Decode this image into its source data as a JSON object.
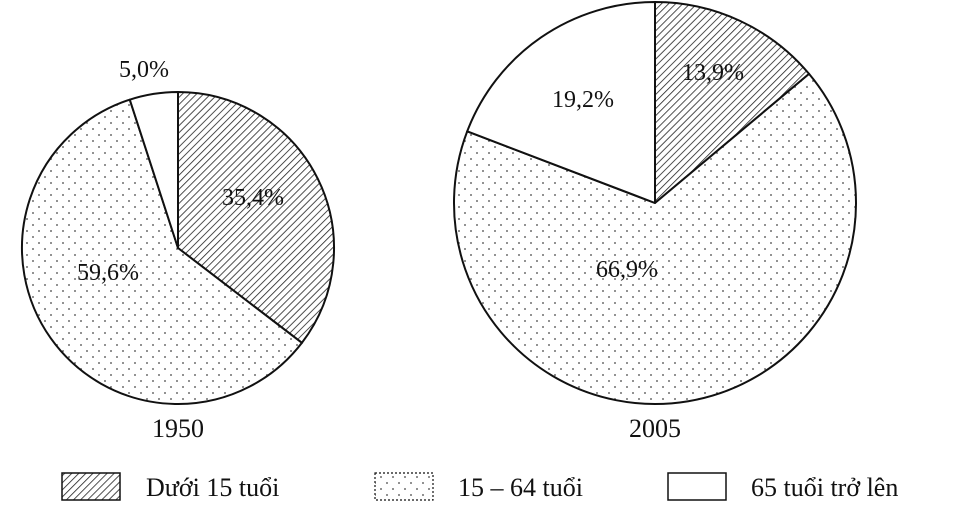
{
  "chart_data": [
    {
      "type": "pie",
      "title": "1950",
      "slices": [
        {
          "key": "under15",
          "label": "Dưới 15 tuổi",
          "value": 35.4,
          "text": "35,4%"
        },
        {
          "key": "working",
          "label": "15 – 64 tuổi",
          "value": 59.6,
          "text": "59,6%"
        },
        {
          "key": "elderly",
          "label": "65 tuổi trở lên",
          "value": 5.0,
          "text": "5,0%"
        }
      ]
    },
    {
      "type": "pie",
      "title": "2005",
      "slices": [
        {
          "key": "under15",
          "label": "Dưới 15 tuổi",
          "value": 13.9,
          "text": "13,9%"
        },
        {
          "key": "working",
          "label": "15 – 64 tuổi",
          "value": 66.9,
          "text": "66,9%"
        },
        {
          "key": "elderly",
          "label": "65 tuổi trở lên",
          "value": 19.2,
          "text": "19,2%"
        }
      ]
    }
  ],
  "legend": [
    {
      "key": "under15",
      "label": "Dưới 15 tuổi",
      "pattern": "hatch"
    },
    {
      "key": "working",
      "label": "15 – 64 tuổi",
      "pattern": "dots"
    },
    {
      "key": "elderly",
      "label": "65 tuổi trở lên",
      "pattern": "blank"
    }
  ],
  "colors": {
    "stroke": "#111111",
    "background": "#ffffff"
  }
}
